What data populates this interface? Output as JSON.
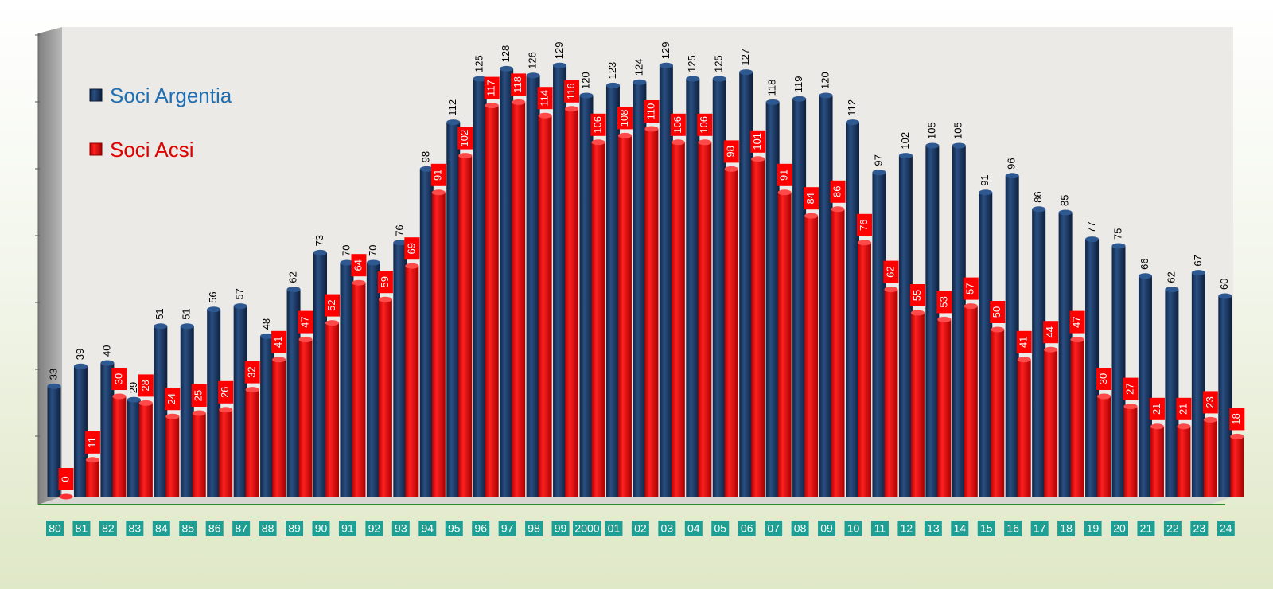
{
  "chart_data": {
    "type": "bar",
    "categories": [
      "80",
      "81",
      "82",
      "83",
      "84",
      "85",
      "86",
      "87",
      "88",
      "89",
      "90",
      "91",
      "92",
      "93",
      "94",
      "95",
      "96",
      "97",
      "98",
      "99",
      "2000",
      "01",
      "02",
      "03",
      "04",
      "05",
      "06",
      "07",
      "08",
      "09",
      "10",
      "11",
      "12",
      "13",
      "14",
      "15",
      "16",
      "17",
      "18",
      "19",
      "20",
      "21",
      "22",
      "23",
      "24"
    ],
    "series": [
      {
        "name": "Soci Argentia",
        "color": "#1b3a66",
        "values": [
          33,
          39,
          40,
          29,
          51,
          51,
          56,
          57,
          48,
          62,
          73,
          70,
          70,
          76,
          98,
          112,
          125,
          128,
          126,
          129,
          120,
          123,
          124,
          129,
          125,
          125,
          127,
          118,
          119,
          120,
          112,
          97,
          102,
          105,
          105,
          91,
          96,
          86,
          85,
          77,
          75,
          66,
          62,
          67,
          60
        ]
      },
      {
        "name": "Soci Acsi",
        "color": "#e80000",
        "values": [
          0,
          11,
          30,
          28,
          24,
          25,
          26,
          32,
          41,
          47,
          52,
          64,
          59,
          69,
          91,
          102,
          117,
          118,
          114,
          116,
          106,
          108,
          110,
          106,
          106,
          98,
          101,
          91,
          84,
          86,
          76,
          62,
          55,
          53,
          57,
          50,
          41,
          44,
          47,
          30,
          27,
          21,
          21,
          23,
          18
        ]
      }
    ],
    "ylim": [
      0,
      140
    ],
    "grid": false,
    "legend": "top-left"
  },
  "colors": {
    "plot_background": "#eceae6",
    "side_wall": "#9c9c9c",
    "axis_line": "#2e8b2e",
    "tick_box": "#1f9e93",
    "tick_text": "#ffffff",
    "navy_label_text": "#000000",
    "red_label_bg": "#ff0000",
    "red_label_text": "#ffffff",
    "legend_navy_text": "#1f6fb5",
    "legend_red_text": "#e00000"
  }
}
